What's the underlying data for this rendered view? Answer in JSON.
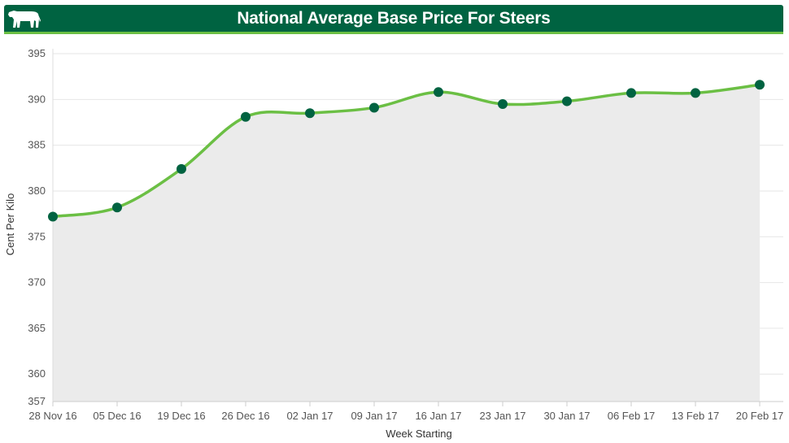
{
  "header": {
    "title": "National Average Base Price For Steers"
  },
  "icons": {
    "header_icon": "cow-icon"
  },
  "colors": {
    "header_bg": "#006341",
    "accent": "#6bbf44",
    "line": "#6bbf44",
    "marker": "#006341",
    "area_fill": "#ebebeb"
  },
  "chart_data": {
    "type": "area",
    "title": "",
    "xlabel": "Week Starting",
    "ylabel": "Cent Per Kilo",
    "categories": [
      "28 Nov 16",
      "05 Dec 16",
      "19 Dec 16",
      "26 Dec 16",
      "02 Jan 17",
      "09 Jan 17",
      "16 Jan 17",
      "23 Jan 17",
      "30 Jan 17",
      "06 Feb 17",
      "13 Feb 17",
      "20 Feb 17"
    ],
    "series": [
      {
        "values": [
          377.2,
          378.2,
          382.4,
          388.1,
          388.5,
          389.1,
          390.8,
          389.5,
          389.8,
          390.7,
          390.7,
          391.6
        ]
      }
    ],
    "ylim": [
      357,
      395
    ],
    "yticks": [
      357,
      360,
      365,
      370,
      375,
      380,
      385,
      390,
      395
    ],
    "grid": true,
    "legend": "none"
  }
}
